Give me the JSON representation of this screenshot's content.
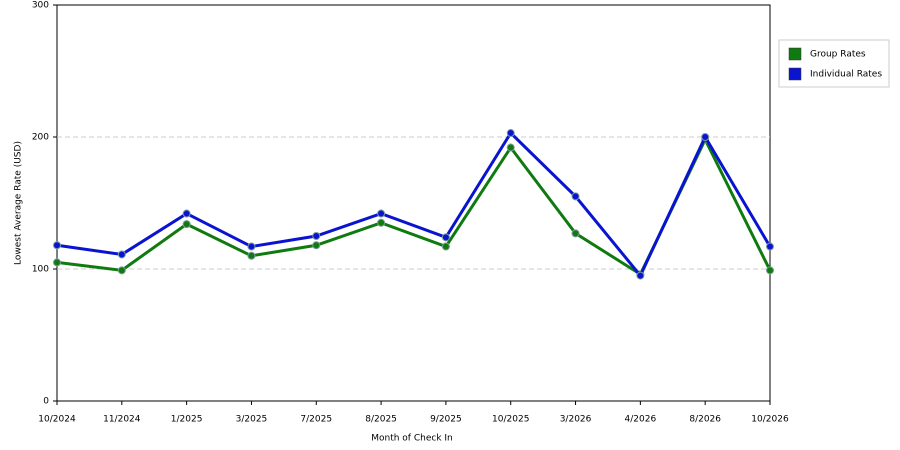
{
  "chart_data": {
    "type": "line",
    "x_label": "Month of Check In",
    "y_label": "Lowest Average Rate (USD)",
    "categories": [
      "10/2024",
      "11/2024",
      "1/2025",
      "3/2025",
      "7/2025",
      "8/2025",
      "9/2025",
      "10/2025",
      "3/2026",
      "4/2026",
      "8/2026",
      "10/2026"
    ],
    "series": [
      {
        "name": "Group Rates",
        "color": "#0f7a0f",
        "values": [
          105,
          99,
          134,
          110,
          118,
          135,
          117,
          192,
          127,
          96,
          198,
          99
        ]
      },
      {
        "name": "Individual Rates",
        "color": "#0a14d0",
        "values": [
          118,
          111,
          142,
          117,
          125,
          142,
          124,
          203,
          155,
          95,
          200,
          117
        ]
      }
    ],
    "ylim": [
      0,
      300
    ],
    "yticks": [
      0,
      100,
      200,
      300
    ],
    "grid": true,
    "legend": "right"
  }
}
